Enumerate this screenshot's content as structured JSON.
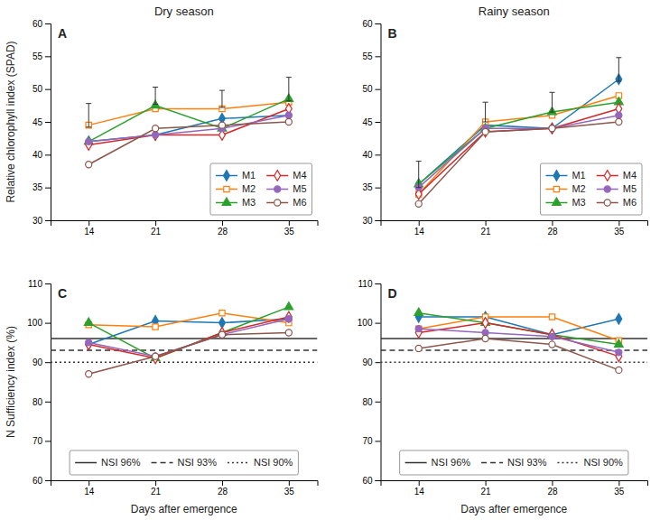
{
  "chart_data": [
    {
      "type": "line",
      "title": "Dry season",
      "annotations": [
        "A"
      ],
      "ylabel": "Relative chlorophyll index (SPAD)",
      "x": [
        14,
        21,
        28,
        35
      ],
      "xlim": [
        10,
        38
      ],
      "xticks": [
        14,
        21,
        28,
        35
      ],
      "ylim": [
        30,
        60
      ],
      "yticks": [
        30,
        35,
        40,
        45,
        50,
        55,
        60
      ],
      "grid": false,
      "legend": "lower right",
      "series": [
        {
          "name": "M1",
          "marker": "diamond",
          "values": [
            42.0,
            43.0,
            45.5,
            46.0
          ]
        },
        {
          "name": "M2",
          "marker": "square-open",
          "values": [
            44.5,
            47.0,
            47.0,
            48.0
          ]
        },
        {
          "name": "M3",
          "marker": "triangle",
          "values": [
            42.0,
            47.5,
            44.0,
            48.5
          ]
        },
        {
          "name": "M4",
          "marker": "diamond-open",
          "values": [
            41.5,
            43.0,
            43.0,
            47.0
          ]
        },
        {
          "name": "M5",
          "marker": "circle",
          "values": [
            42.0,
            43.0,
            44.0,
            46.0
          ]
        },
        {
          "name": "M6",
          "marker": "circle-open",
          "values": [
            38.5,
            44.0,
            44.5,
            45.0
          ]
        }
      ],
      "error_bars": [
        {
          "x": 14,
          "value": 46.0,
          "error": 1.8
        },
        {
          "x": 21,
          "value": 49.0,
          "error": 1.3
        },
        {
          "x": 28,
          "value": 48.5,
          "error": 1.3
        },
        {
          "x": 35,
          "value": 50.0,
          "error": 1.8
        }
      ]
    },
    {
      "type": "line",
      "title": "Rainy season",
      "annotations": [
        "B"
      ],
      "x": [
        14,
        21,
        28,
        35
      ],
      "xlim": [
        10,
        38
      ],
      "xticks": [
        14,
        21,
        28,
        35
      ],
      "ylim": [
        30,
        60
      ],
      "yticks": [
        30,
        35,
        40,
        45,
        50,
        55,
        60
      ],
      "grid": false,
      "legend": "lower right",
      "series": [
        {
          "name": "M1",
          "marker": "diamond",
          "values": [
            35.5,
            44.5,
            44.0,
            51.5
          ]
        },
        {
          "name": "M2",
          "marker": "square-open",
          "values": [
            34.0,
            45.0,
            46.0,
            49.0
          ]
        },
        {
          "name": "M3",
          "marker": "triangle",
          "values": [
            35.5,
            44.0,
            46.5,
            48.0
          ]
        },
        {
          "name": "M4",
          "marker": "diamond-open",
          "values": [
            34.0,
            43.5,
            44.0,
            47.0
          ]
        },
        {
          "name": "M5",
          "marker": "circle",
          "values": [
            35.0,
            44.0,
            44.0,
            46.0
          ]
        },
        {
          "name": "M6",
          "marker": "circle-open",
          "values": [
            32.5,
            43.5,
            44.0,
            45.0
          ]
        }
      ],
      "error_bars": [
        {
          "x": 14,
          "value": 37.0,
          "error": 2.0
        },
        {
          "x": 21,
          "value": 46.5,
          "error": 1.5
        },
        {
          "x": 28,
          "value": 48.0,
          "error": 1.5
        },
        {
          "x": 35,
          "value": 53.0,
          "error": 1.8
        }
      ]
    },
    {
      "type": "line",
      "annotations": [
        "C"
      ],
      "ylabel": "N Sufficiency index (%)",
      "xlabel": "Days after emergence",
      "x": [
        14,
        21,
        28,
        35
      ],
      "xlim": [
        10,
        38
      ],
      "xticks": [
        14,
        21,
        28,
        35
      ],
      "ylim": [
        60,
        110
      ],
      "yticks": [
        60,
        70,
        80,
        90,
        100,
        110
      ],
      "grid": false,
      "legend": "lower center",
      "series": [
        {
          "marker": "diamond",
          "values": [
            94.5,
            100.5,
            100.0,
            101.0
          ]
        },
        {
          "marker": "square-open",
          "values": [
            99.5,
            99.0,
            102.5,
            100.0
          ]
        },
        {
          "marker": "triangle",
          "values": [
            100.0,
            91.0,
            97.5,
            104.0
          ]
        },
        {
          "marker": "diamond-open",
          "values": [
            94.5,
            91.0,
            97.5,
            101.5
          ]
        },
        {
          "marker": "circle",
          "values": [
            95.0,
            91.5,
            97.0,
            101.0
          ]
        },
        {
          "marker": "circle-open",
          "values": [
            87.0,
            91.5,
            97.0,
            97.5
          ]
        }
      ],
      "reference_lines": [
        {
          "name": "NSI 96%",
          "value": 96,
          "line_style": "solid"
        },
        {
          "name": "NSI 93%",
          "value": 93,
          "line_style": "dashed"
        },
        {
          "name": "NSI 90%",
          "value": 90,
          "line_style": "dotted"
        }
      ]
    },
    {
      "type": "line",
      "annotations": [
        "D"
      ],
      "xlabel": "Days after emergence",
      "x": [
        14,
        21,
        28,
        35
      ],
      "xlim": [
        10,
        38
      ],
      "xticks": [
        14,
        21,
        28,
        35
      ],
      "ylim": [
        60,
        110
      ],
      "yticks": [
        60,
        70,
        80,
        90,
        100,
        110
      ],
      "grid": false,
      "legend": "lower center",
      "series": [
        {
          "marker": "diamond",
          "values": [
            101.5,
            101.5,
            97.0,
            101.0
          ]
        },
        {
          "marker": "square-open",
          "values": [
            98.5,
            101.5,
            101.5,
            95.5
          ]
        },
        {
          "marker": "triangle",
          "values": [
            102.5,
            100.0,
            97.0,
            94.5
          ]
        },
        {
          "marker": "diamond-open",
          "values": [
            97.5,
            100.0,
            97.0,
            91.5
          ]
        },
        {
          "marker": "circle",
          "values": [
            98.5,
            97.5,
            96.5,
            92.5
          ]
        },
        {
          "marker": "circle-open",
          "values": [
            93.5,
            96.0,
            94.5,
            88.0
          ]
        }
      ],
      "reference_lines": [
        {
          "name": "NSI 96%",
          "value": 96,
          "line_style": "solid"
        },
        {
          "name": "NSI 93%",
          "value": 93,
          "line_style": "dashed"
        },
        {
          "name": "NSI 90%",
          "value": 90,
          "line_style": "dotted"
        }
      ]
    }
  ]
}
